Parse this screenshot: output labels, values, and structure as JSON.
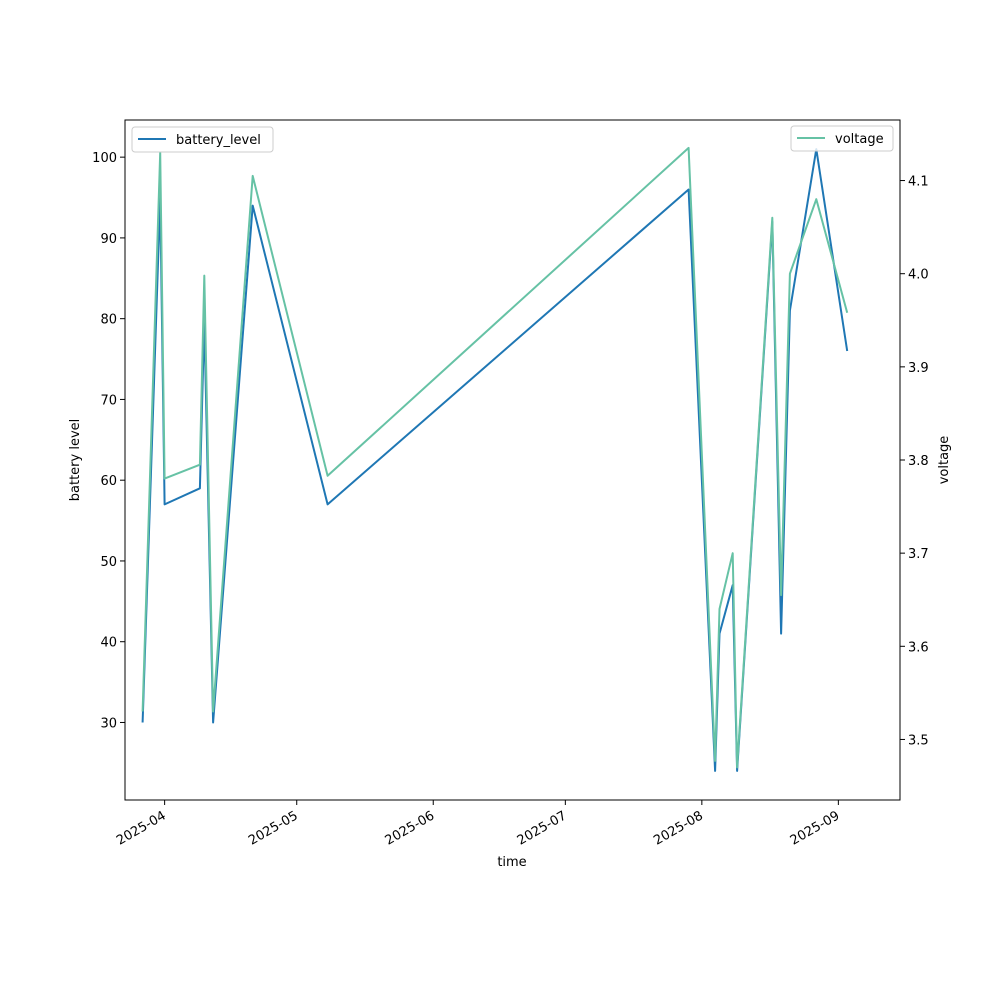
{
  "chart_data": {
    "type": "line",
    "xlabel": "time",
    "ylabel_left": "battery level",
    "ylabel_right": "voltage",
    "xlim": [
      "2025-03-23",
      "2025-09-15"
    ],
    "ylim_left": [
      20.4,
      104.6
    ],
    "ylim_right": [
      3.435,
      4.165
    ],
    "x_ticks": [
      "2025-04",
      "2025-05",
      "2025-06",
      "2025-07",
      "2025-08",
      "2025-09"
    ],
    "y_ticks_left": [
      30,
      40,
      50,
      60,
      70,
      80,
      90,
      100
    ],
    "y_ticks_right": [
      3.5,
      3.6,
      3.7,
      3.8,
      3.9,
      4.0,
      4.1
    ],
    "legend_left": {
      "placement": "upper left",
      "label": "battery_level"
    },
    "legend_right": {
      "placement": "upper right",
      "label": "voltage"
    },
    "grid": false,
    "series": [
      {
        "name": "battery_level",
        "axis": "left",
        "color": "#1f77b4",
        "x": [
          "2025-03-27",
          "2025-03-31",
          "2025-04-01",
          "2025-04-09",
          "2025-04-10",
          "2025-04-12",
          "2025-04-21",
          "2025-05-08",
          "2025-07-29",
          "2025-08-04",
          "2025-08-05",
          "2025-08-08",
          "2025-08-09",
          "2025-08-17",
          "2025-08-19",
          "2025-08-21",
          "2025-08-27",
          "2025-09-03"
        ],
        "values": [
          30,
          95,
          57,
          59,
          80,
          30,
          94,
          57,
          96,
          24,
          41,
          47,
          24,
          92,
          41,
          81,
          101,
          76
        ]
      },
      {
        "name": "voltage",
        "axis": "right",
        "color": "#66c2a5",
        "x": [
          "2025-03-27",
          "2025-03-31",
          "2025-04-01",
          "2025-04-09",
          "2025-04-10",
          "2025-04-12",
          "2025-04-21",
          "2025-05-08",
          "2025-07-29",
          "2025-08-04",
          "2025-08-05",
          "2025-08-08",
          "2025-08-09",
          "2025-08-17",
          "2025-08-19",
          "2025-08-21",
          "2025-08-27",
          "2025-09-03"
        ],
        "values": [
          3.53,
          4.13,
          3.78,
          3.795,
          3.998,
          3.53,
          4.105,
          3.783,
          4.135,
          3.477,
          3.64,
          3.7,
          3.47,
          4.06,
          3.655,
          4.0,
          4.08,
          3.958
        ]
      }
    ]
  }
}
